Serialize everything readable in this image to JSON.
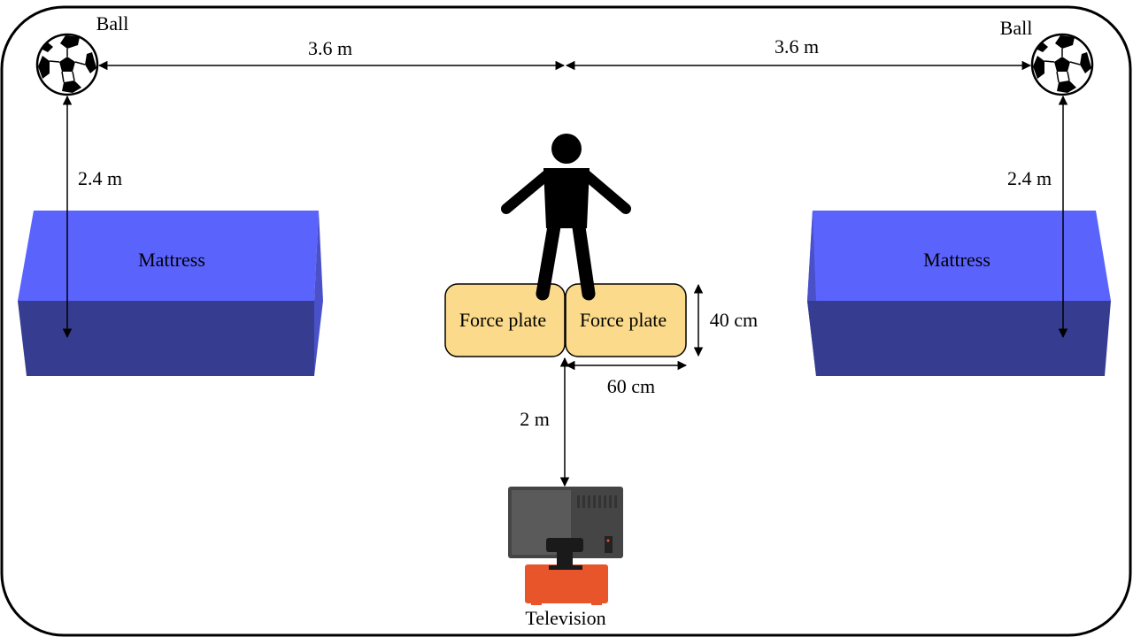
{
  "labels": {
    "ball_left": "Ball",
    "ball_right": "Ball",
    "dist_left_horizontal": "3.6 m",
    "dist_right_horizontal": "3.6 m",
    "dist_left_vertical": "2.4 m",
    "dist_right_vertical": "2.4 m",
    "mattress_left": "Mattress",
    "mattress_right": "Mattress",
    "force_plate_left": "Force plate",
    "force_plate_right": "Force plate",
    "plate_height": "40 cm",
    "plate_width": "60 cm",
    "dist_to_tv": "2 m",
    "television": "Television"
  },
  "colors": {
    "mattress_top": "#5b63fd",
    "mattress_front": "#363c8f",
    "mattress_side": "#4a51c8",
    "force_plate": "#fbdb8b",
    "tv_screen": "#454545",
    "tv_stand": "#e8552b",
    "person": "#000000"
  },
  "icons": [
    "soccer-ball-icon",
    "person-icon",
    "television-icon"
  ]
}
